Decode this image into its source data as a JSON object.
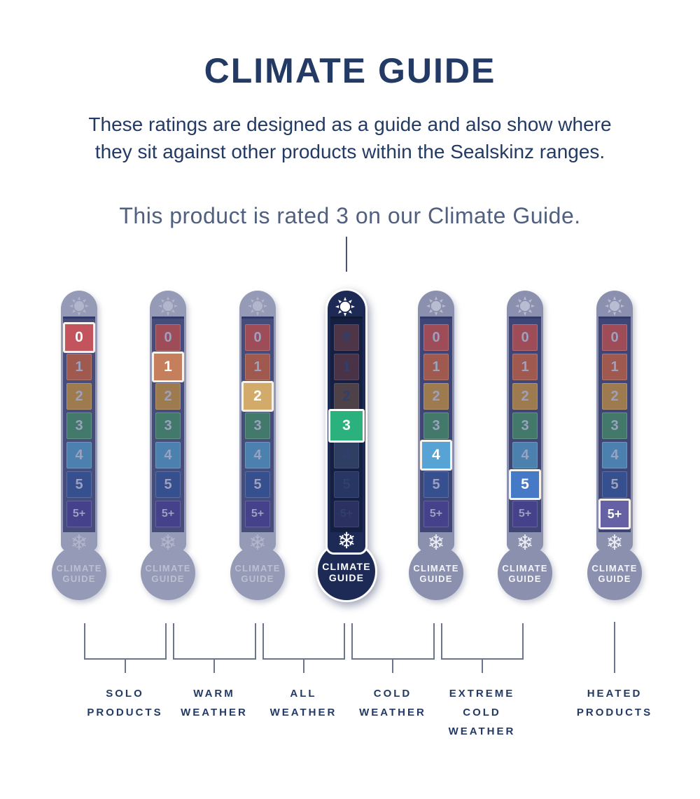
{
  "header": {
    "title": "CLIMATE GUIDE",
    "subtitle_lines": [
      "These ratings are designed as a guide and also show where",
      "they sit against other products within the Sealskinz ranges."
    ],
    "rating_note": "This product is rated 3 on our Climate Guide."
  },
  "product_rating": "3",
  "scale": {
    "levels": [
      "0",
      "1",
      "2",
      "3",
      "4",
      "5",
      "5+"
    ]
  },
  "bulb_label_lines": [
    "CLIMATE",
    "GUIDE"
  ],
  "thermometers": [
    {
      "name": "thermometer-1",
      "rating": "0",
      "active": false,
      "tone": "dim"
    },
    {
      "name": "thermometer-2",
      "rating": "1",
      "active": false,
      "tone": "dim"
    },
    {
      "name": "thermometer-3",
      "rating": "2",
      "active": false,
      "tone": "dim"
    },
    {
      "name": "thermometer-4",
      "rating": "3",
      "active": true,
      "tone": "light"
    },
    {
      "name": "thermometer-5",
      "rating": "4",
      "active": false,
      "tone": "light"
    },
    {
      "name": "thermometer-6",
      "rating": "5",
      "active": false,
      "tone": "light"
    },
    {
      "name": "thermometer-7",
      "rating": "5+",
      "active": false,
      "tone": "light"
    }
  ],
  "level_colors": {
    "bright": [
      "#c3545e",
      "#c67f5c",
      "#d2ab6a",
      "#2bb27c",
      "#57a3d6",
      "#4679c6",
      "#6661a5"
    ],
    "muted": [
      "#9e4d58",
      "#9f594e",
      "#9d7b4e",
      "#42796b",
      "#4c80ae",
      "#36508f",
      "#45418b"
    ],
    "dark": [
      "#4e3547",
      "#4b3347",
      "#4e4248",
      "#2c4a55",
      "#2e3f63",
      "#273663",
      "#2b3161"
    ]
  },
  "categories": [
    {
      "label_lines": [
        "SOLO",
        "PRODUCTS"
      ],
      "span": [
        0,
        1
      ]
    },
    {
      "label_lines": [
        "WARM",
        "WEATHER"
      ],
      "span": [
        1,
        2
      ]
    },
    {
      "label_lines": [
        "ALL",
        "WEATHER"
      ],
      "span": [
        2,
        3
      ]
    },
    {
      "label_lines": [
        "COLD",
        "WEATHER"
      ],
      "span": [
        3,
        4
      ]
    },
    {
      "label_lines": [
        "EXTREME",
        "COLD",
        "WEATHER"
      ],
      "span": [
        4,
        5
      ]
    },
    {
      "label_lines": [
        "HEATED",
        "PRODUCTS"
      ],
      "span": [
        6,
        6
      ]
    }
  ],
  "colors": {
    "navy": "#223a64",
    "slate_text": "#51607f",
    "connector": "#4a5470",
    "stem": "#8e93b1",
    "track": "#3f4676",
    "active_navy": "#1d2a56",
    "active_track": "#141f42",
    "bracket": "#6b7590",
    "dim_icon": "#b2b6cb",
    "light_icon": "#eceef4",
    "dim_text": "#bcc0d2",
    "light_text": "#f4f5f8",
    "cell_num": "#9ba1bf",
    "active_cell_num": "#2f3f6e",
    "hl_border": "#f6f2e9",
    "green_highlight": "#2bb27c"
  }
}
